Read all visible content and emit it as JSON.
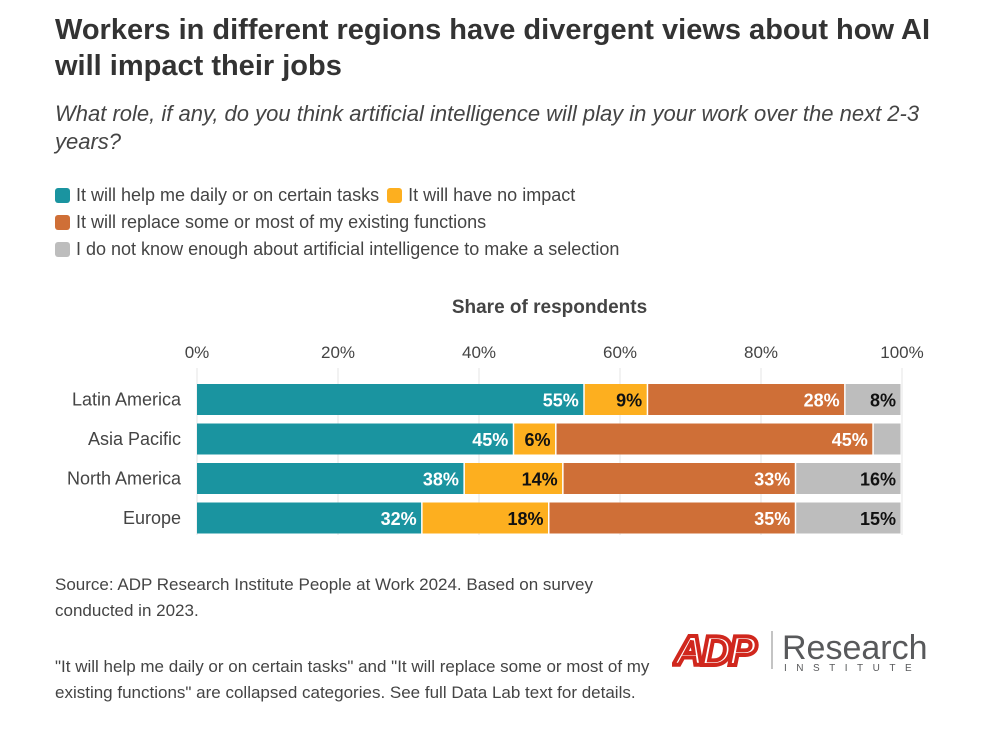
{
  "title": "Workers in different regions have divergent views about how AI will impact their jobs",
  "subtitle": "What role, if any, do you think artificial intelligence will play in your work over the next 2-3 years?",
  "source": "Source: ADP Research Institute People at Work 2024. Based on survey conducted in 2023.",
  "note": "\"It will help me daily or on certain tasks\" and \"It will replace some or most of my existing functions\" are collapsed categories. See full Data Lab text for details.",
  "logo": {
    "brand": "ADP",
    "name": "Research",
    "sub": "INSTITUTE"
  },
  "chart_data": {
    "type": "bar",
    "orientation": "horizontal",
    "stacked": true,
    "xlabel": "Share of respondents",
    "xlim": [
      0,
      100
    ],
    "ticks": [
      "0%",
      "20%",
      "40%",
      "60%",
      "80%",
      "100%"
    ],
    "grid": true,
    "legend_position": "top-left",
    "categories": [
      "Latin America",
      "Asia Pacific",
      "North America",
      "Europe"
    ],
    "series": [
      {
        "name": "It will help me daily or on certain tasks",
        "color": "#1a94a0",
        "label_color": "#ffffff",
        "values": [
          55,
          45,
          38,
          32
        ]
      },
      {
        "name": "It will have no impact",
        "color": "#fdaf1f",
        "label_color": "#111111",
        "values": [
          9,
          6,
          14,
          18
        ]
      },
      {
        "name": "It will replace some or most of my existing functions",
        "color": "#cf6f37",
        "label_color": "#ffffff",
        "values": [
          28,
          45,
          33,
          35
        ]
      },
      {
        "name": "I do not know enough about artificial intelligence to make a selection",
        "color": "#bdbdbd",
        "label_color": "#111111",
        "values": [
          8,
          4,
          16,
          15
        ]
      }
    ],
    "hidden_labels": [
      [
        1,
        3
      ]
    ]
  }
}
